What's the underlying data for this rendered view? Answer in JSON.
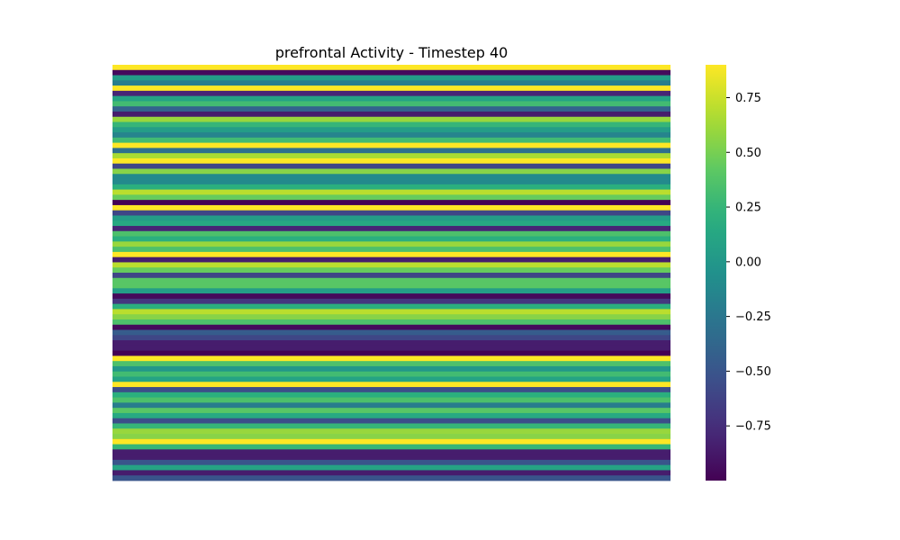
{
  "chart_data": {
    "type": "heatmap",
    "title": "prefrontal Activity - Timestep 40",
    "xlabel": "",
    "ylabel": "",
    "colormap": "viridis",
    "vmin": -1.0,
    "vmax": 0.9,
    "colorbar_ticks": [
      {
        "value": 0.75,
        "label": "0.75"
      },
      {
        "value": 0.5,
        "label": "0.50"
      },
      {
        "value": 0.25,
        "label": "0.25"
      },
      {
        "value": 0.0,
        "label": "0.00"
      },
      {
        "value": -0.25,
        "label": "−0.25"
      },
      {
        "value": -0.5,
        "label": "−0.50"
      },
      {
        "value": -0.75,
        "label": "−0.75"
      }
    ],
    "rows": 80,
    "columns": 1,
    "values": [
      0.9,
      -0.95,
      0.05,
      -0.2,
      0.9,
      -0.8,
      0.1,
      0.3,
      -0.4,
      -0.85,
      0.6,
      0.25,
      0.05,
      -0.15,
      0.3,
      0.9,
      -0.3,
      0.65,
      0.9,
      -0.6,
      0.55,
      -0.1,
      -0.1,
      0.2,
      0.7,
      0.45,
      -1.0,
      0.9,
      -0.6,
      0.05,
      0.15,
      -0.8,
      0.35,
      0.2,
      0.6,
      0.35,
      0.9,
      -0.85,
      0.7,
      0.45,
      -0.6,
      0.4,
      0.4,
      0.05,
      -0.95,
      -0.7,
      0.2,
      0.7,
      0.55,
      0.35,
      -0.95,
      -0.45,
      -0.6,
      -0.85,
      -0.85,
      -1.0,
      0.9,
      0.35,
      0.0,
      0.3,
      0.1,
      0.9,
      -0.55,
      0.2,
      0.35,
      -0.2,
      0.4,
      0.15,
      -0.55,
      0.25,
      0.6,
      0.55,
      0.9,
      0.25,
      -0.85,
      -0.85,
      -0.5,
      0.1,
      -0.85,
      -0.5
    ]
  }
}
